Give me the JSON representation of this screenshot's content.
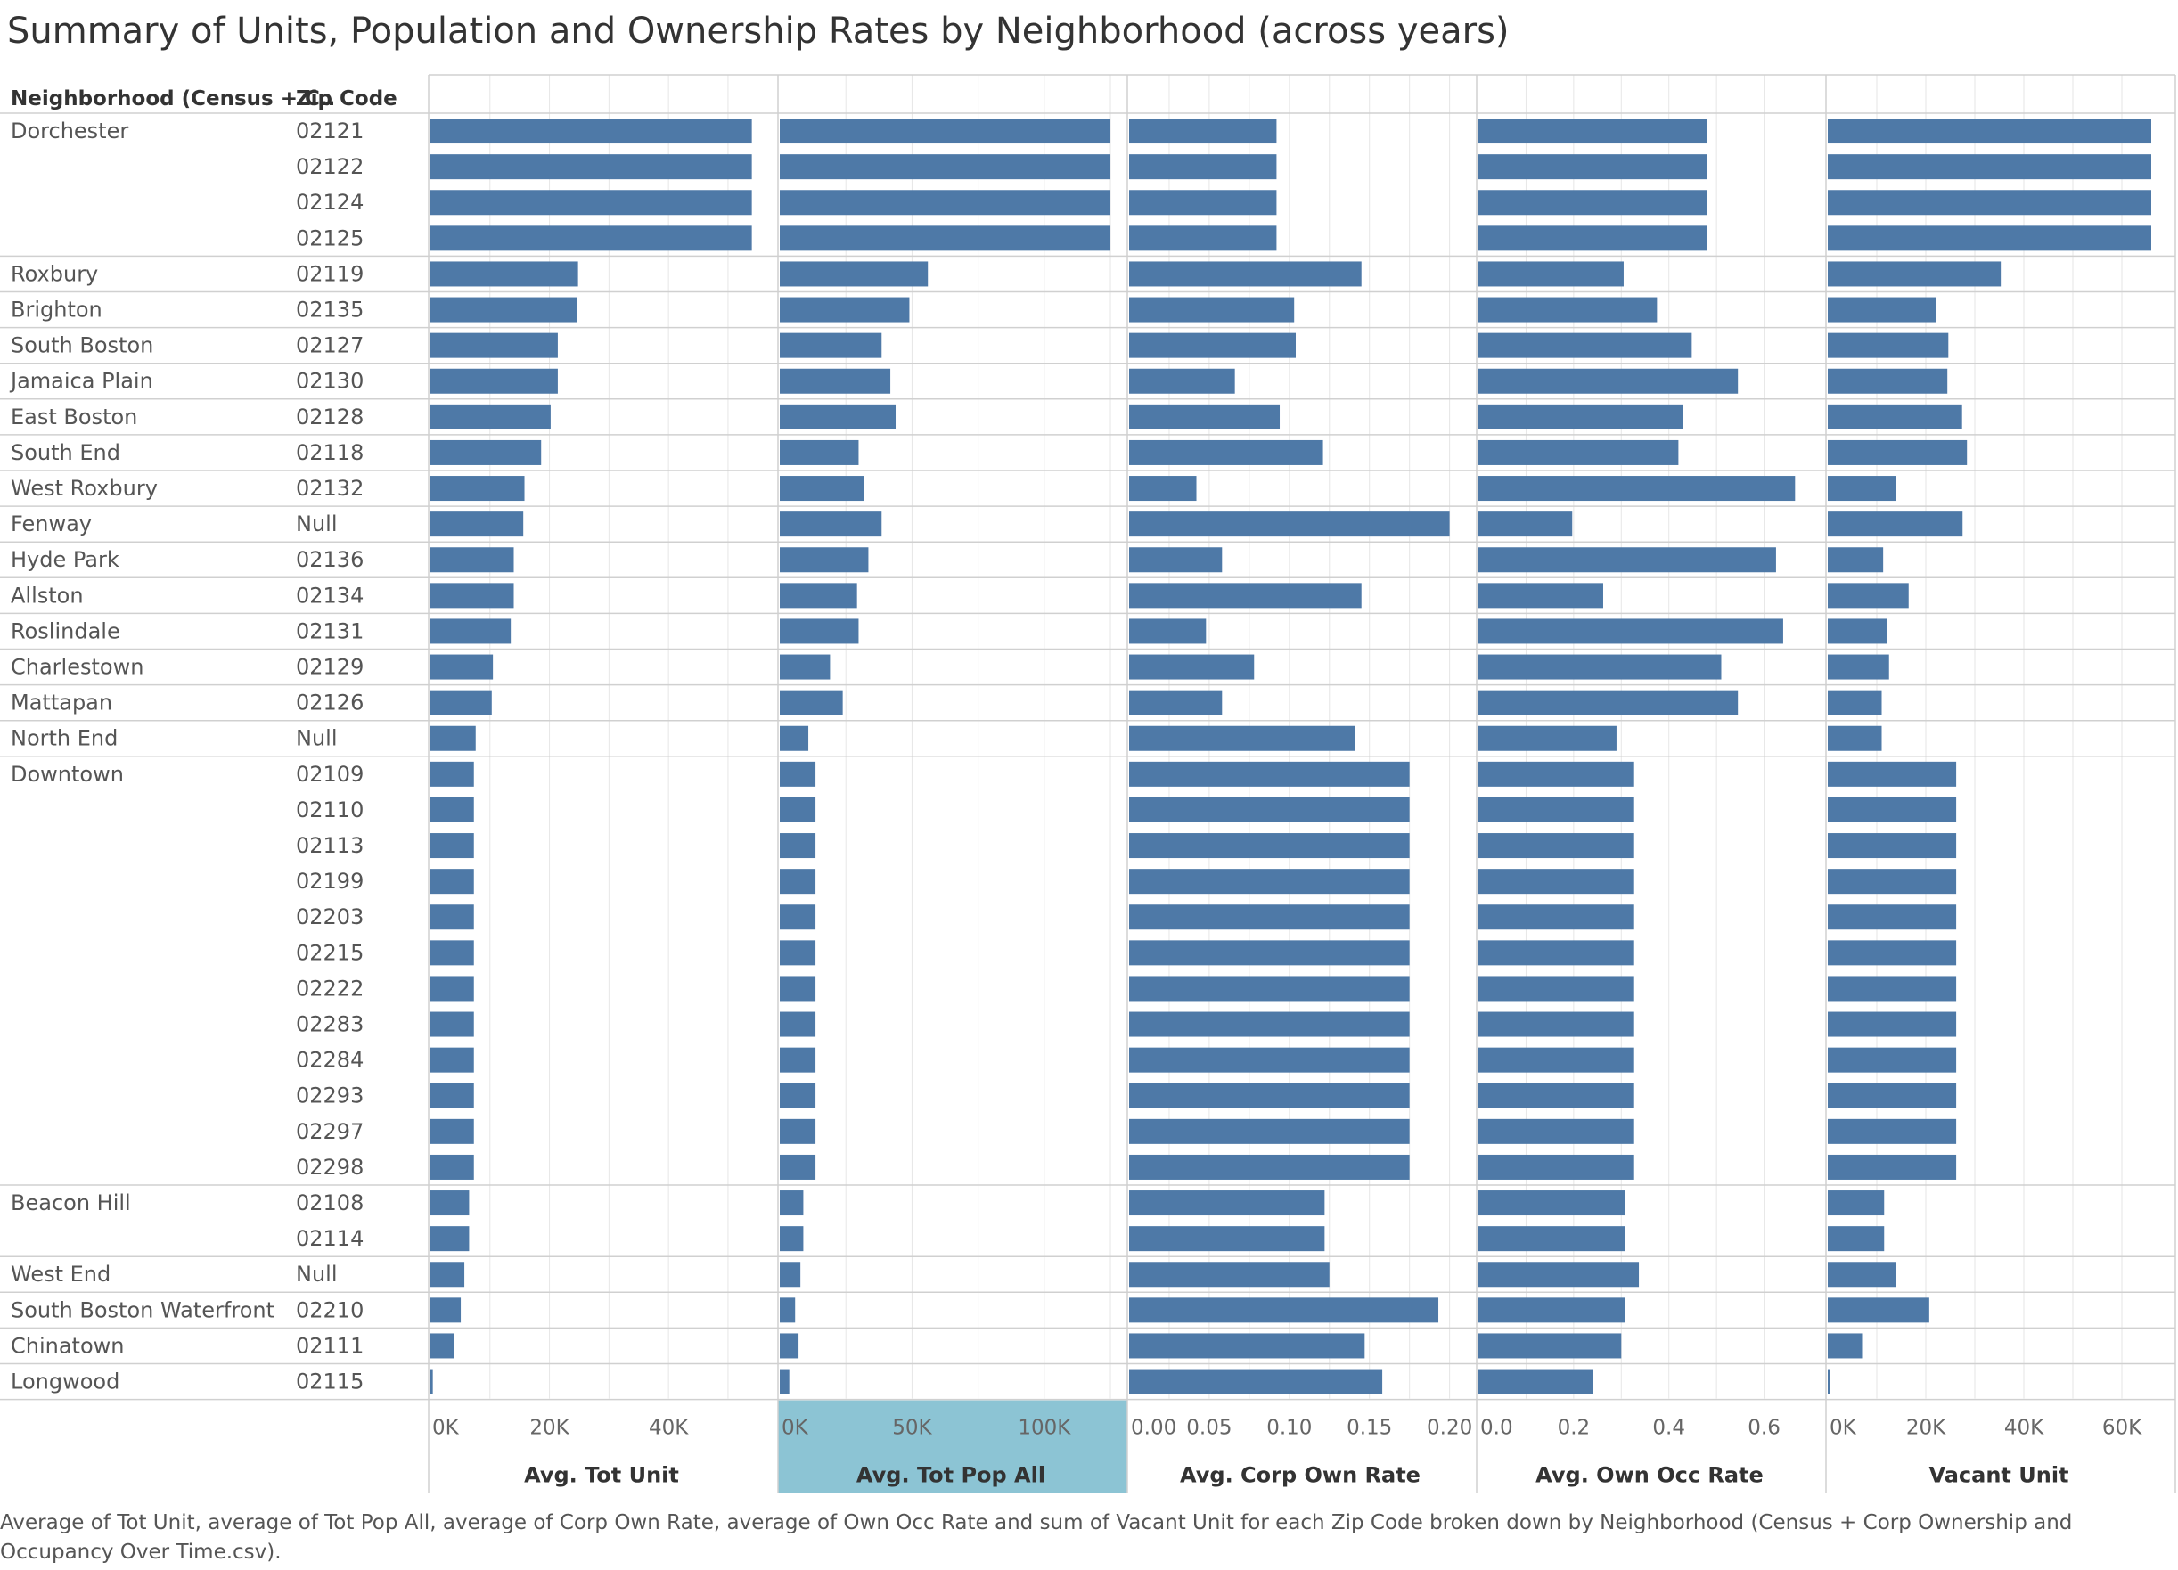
{
  "title": "Summary of Units, Population and Ownership Rates by Neighborhood (across years)",
  "caption": "Average of Tot Unit, average of Tot Pop All, average of Corp Own Rate, average of Own Occ Rate and sum of Vacant Unit for each Zip Code broken down by Neighborhood (Census + Corp Ownership and Occupancy Over Time.csv).",
  "headers": {
    "neighborhood": "Neighborhood (Census + C..",
    "zip": "Zip Code"
  },
  "colors": {
    "bar": "#4e79a7",
    "highlight": "#8cc4d4",
    "grid": "#e6e6e6",
    "border": "#d0d0d0"
  },
  "chart_data": {
    "type": "bar",
    "orientation": "horizontal",
    "panels": [
      {
        "id": "tot_unit",
        "title": "Avg. Tot Unit",
        "max": 56000,
        "ticks": [
          0,
          20000,
          40000
        ],
        "tick_labels": [
          "0K",
          "20K",
          "40K"
        ]
      },
      {
        "id": "tot_pop",
        "title": "Avg. Tot Pop All",
        "max": 126000,
        "ticks": [
          0,
          50000,
          100000
        ],
        "tick_labels": [
          "0K",
          "50K",
          "100K"
        ],
        "highlighted": true
      },
      {
        "id": "corp_rate",
        "title": "Avg. Corp Own Rate",
        "max": 0.208,
        "ticks": [
          0,
          0.05,
          0.1,
          0.15,
          0.2
        ],
        "tick_labels": [
          "0.00",
          "0.05",
          "0.10",
          "0.15",
          "0.20"
        ]
      },
      {
        "id": "own_occ",
        "title": "Avg. Own Occ Rate",
        "max": 0.7,
        "ticks": [
          0,
          0.2,
          0.4,
          0.6
        ],
        "tick_labels": [
          "0.0",
          "0.2",
          "0.4",
          "0.6"
        ]
      },
      {
        "id": "vacant",
        "title": "Vacant Unit",
        "max": 68000,
        "ticks": [
          0,
          20000,
          40000,
          60000
        ],
        "tick_labels": [
          "0K",
          "20K",
          "40K",
          "60K"
        ]
      }
    ],
    "groups": [
      {
        "neighborhood": "Dorchester",
        "rows": [
          {
            "zip": "02121",
            "values": [
              54000,
              125000,
              0.092,
              0.48,
              66000
            ]
          },
          {
            "zip": "02122",
            "values": [
              54000,
              125000,
              0.092,
              0.48,
              66000
            ]
          },
          {
            "zip": "02124",
            "values": [
              54000,
              125000,
              0.092,
              0.48,
              66000
            ]
          },
          {
            "zip": "02125",
            "values": [
              54000,
              125000,
              0.092,
              0.48,
              66000
            ]
          }
        ]
      },
      {
        "neighborhood": "Roxbury",
        "rows": [
          {
            "zip": "02119",
            "values": [
              24800,
              56000,
              0.145,
              0.305,
              35300
            ]
          }
        ]
      },
      {
        "neighborhood": "Brighton",
        "rows": [
          {
            "zip": "02135",
            "values": [
              24600,
              49000,
              0.103,
              0.375,
              22000
            ]
          }
        ]
      },
      {
        "neighborhood": "South Boston",
        "rows": [
          {
            "zip": "02127",
            "values": [
              21400,
              38500,
              0.104,
              0.448,
              24600
            ]
          }
        ]
      },
      {
        "neighborhood": "Jamaica Plain",
        "rows": [
          {
            "zip": "02130",
            "values": [
              21400,
              41800,
              0.066,
              0.545,
              24400
            ]
          }
        ]
      },
      {
        "neighborhood": "East Boston",
        "rows": [
          {
            "zip": "02128",
            "values": [
              20200,
              43800,
              0.094,
              0.43,
              27400
            ]
          }
        ]
      },
      {
        "neighborhood": "South End",
        "rows": [
          {
            "zip": "02118",
            "values": [
              18600,
              29800,
              0.121,
              0.42,
              28400
            ]
          }
        ]
      },
      {
        "neighborhood": "West Roxbury",
        "rows": [
          {
            "zip": "02132",
            "values": [
              15800,
              31800,
              0.042,
              0.665,
              14000
            ]
          }
        ]
      },
      {
        "neighborhood": "Fenway",
        "rows": [
          {
            "zip": "Null",
            "values": [
              15600,
              38500,
              0.2,
              0.197,
              27500
            ]
          }
        ]
      },
      {
        "neighborhood": "Hyde Park",
        "rows": [
          {
            "zip": "02136",
            "values": [
              14000,
              33500,
              0.058,
              0.625,
              11300
            ]
          }
        ]
      },
      {
        "neighborhood": "Allston",
        "rows": [
          {
            "zip": "02134",
            "values": [
              14000,
              29200,
              0.145,
              0.262,
              16500
            ]
          }
        ]
      },
      {
        "neighborhood": "Roslindale",
        "rows": [
          {
            "zip": "02131",
            "values": [
              13500,
              29800,
              0.048,
              0.64,
              12000
            ]
          }
        ]
      },
      {
        "neighborhood": "Charlestown",
        "rows": [
          {
            "zip": "02129",
            "values": [
              10500,
              19000,
              0.078,
              0.51,
              12500
            ]
          }
        ]
      },
      {
        "neighborhood": "Mattapan",
        "rows": [
          {
            "zip": "02126",
            "values": [
              10300,
              23800,
              0.058,
              0.545,
              11000
            ]
          }
        ]
      },
      {
        "neighborhood": "North End",
        "rows": [
          {
            "zip": "Null",
            "values": [
              7600,
              10800,
              0.141,
              0.29,
              11000
            ]
          }
        ]
      },
      {
        "neighborhood": "Downtown",
        "rows": [
          {
            "zip": "02109",
            "values": [
              7300,
              13500,
              0.175,
              0.327,
              26200
            ]
          },
          {
            "zip": "02110",
            "values": [
              7300,
              13500,
              0.175,
              0.327,
              26200
            ]
          },
          {
            "zip": "02113",
            "values": [
              7300,
              13500,
              0.175,
              0.327,
              26200
            ]
          },
          {
            "zip": "02199",
            "values": [
              7300,
              13500,
              0.175,
              0.327,
              26200
            ]
          },
          {
            "zip": "02203",
            "values": [
              7300,
              13500,
              0.175,
              0.327,
              26200
            ]
          },
          {
            "zip": "02215",
            "values": [
              7300,
              13500,
              0.175,
              0.327,
              26200
            ]
          },
          {
            "zip": "02222",
            "values": [
              7300,
              13500,
              0.175,
              0.327,
              26200
            ]
          },
          {
            "zip": "02283",
            "values": [
              7300,
              13500,
              0.175,
              0.327,
              26200
            ]
          },
          {
            "zip": "02284",
            "values": [
              7300,
              13500,
              0.175,
              0.327,
              26200
            ]
          },
          {
            "zip": "02293",
            "values": [
              7300,
              13500,
              0.175,
              0.327,
              26200
            ]
          },
          {
            "zip": "02297",
            "values": [
              7300,
              13500,
              0.175,
              0.327,
              26200
            ]
          },
          {
            "zip": "02298",
            "values": [
              7300,
              13500,
              0.175,
              0.327,
              26200
            ]
          }
        ]
      },
      {
        "neighborhood": "Beacon Hill",
        "rows": [
          {
            "zip": "02108",
            "values": [
              6500,
              8900,
              0.122,
              0.308,
              11500
            ]
          },
          {
            "zip": "02114",
            "values": [
              6500,
              8900,
              0.122,
              0.308,
              11500
            ]
          }
        ]
      },
      {
        "neighborhood": "West End",
        "rows": [
          {
            "zip": "Null",
            "values": [
              5700,
              7800,
              0.125,
              0.337,
              14000
            ]
          }
        ]
      },
      {
        "neighborhood": "South Boston Waterfront",
        "rows": [
          {
            "zip": "02210",
            "values": [
              5100,
              5800,
              0.193,
              0.307,
              20700
            ]
          }
        ]
      },
      {
        "neighborhood": "Chinatown",
        "rows": [
          {
            "zip": "02111",
            "values": [
              3900,
              7100,
              0.147,
              0.3,
              7000
            ]
          }
        ]
      },
      {
        "neighborhood": "Longwood",
        "rows": [
          {
            "zip": "02115",
            "values": [
              400,
              3600,
              0.158,
              0.24,
              500
            ]
          }
        ]
      }
    ]
  }
}
